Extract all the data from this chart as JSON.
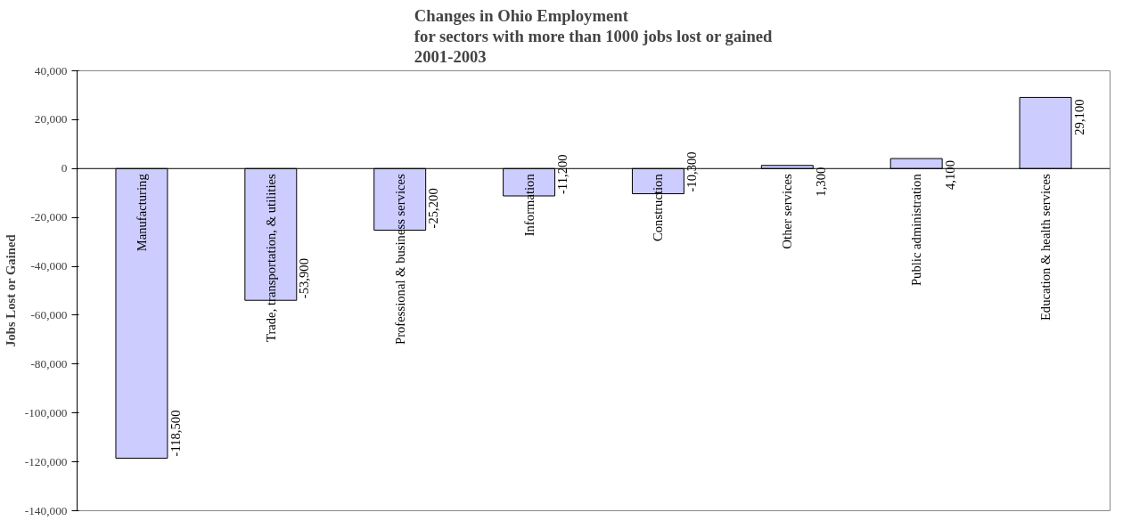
{
  "chart_data": {
    "type": "bar",
    "title": "Changes in Ohio Employment\nfor sectors with more than 1000 jobs lost or gained\n2001-2003",
    "ylabel": "Jobs Lost or Gained",
    "categories": [
      "Manufacturing",
      "Trade, transportation, & utilities",
      "Professional & business services",
      "Information",
      "Construction",
      "Other services",
      "Public administration",
      "Education & health services"
    ],
    "values": [
      -118500,
      -53900,
      -25200,
      -11200,
      -10300,
      1300,
      4100,
      29100
    ],
    "value_labels": [
      "-118,500",
      "-53,900",
      "-25,200",
      "-11,200",
      "-10,300",
      "1,300",
      "4,100",
      "29,100"
    ],
    "color": "#ccccff",
    "ylim": [
      -140000,
      40000
    ],
    "yticks": [
      {
        "value": -140000,
        "label": "-140,000"
      },
      {
        "value": -120000,
        "label": "-120,000"
      },
      {
        "value": -100000,
        "label": "-100,000"
      },
      {
        "value": -80000,
        "label": "-80,000"
      },
      {
        "value": -60000,
        "label": "-60,000"
      },
      {
        "value": -40000,
        "label": "-40,000"
      },
      {
        "value": -20000,
        "label": "-20,000"
      },
      0,
      {
        "value": 20000,
        "label": "20,000"
      },
      {
        "value": 40000,
        "label": "40,000"
      }
    ],
    "grid": false
  }
}
